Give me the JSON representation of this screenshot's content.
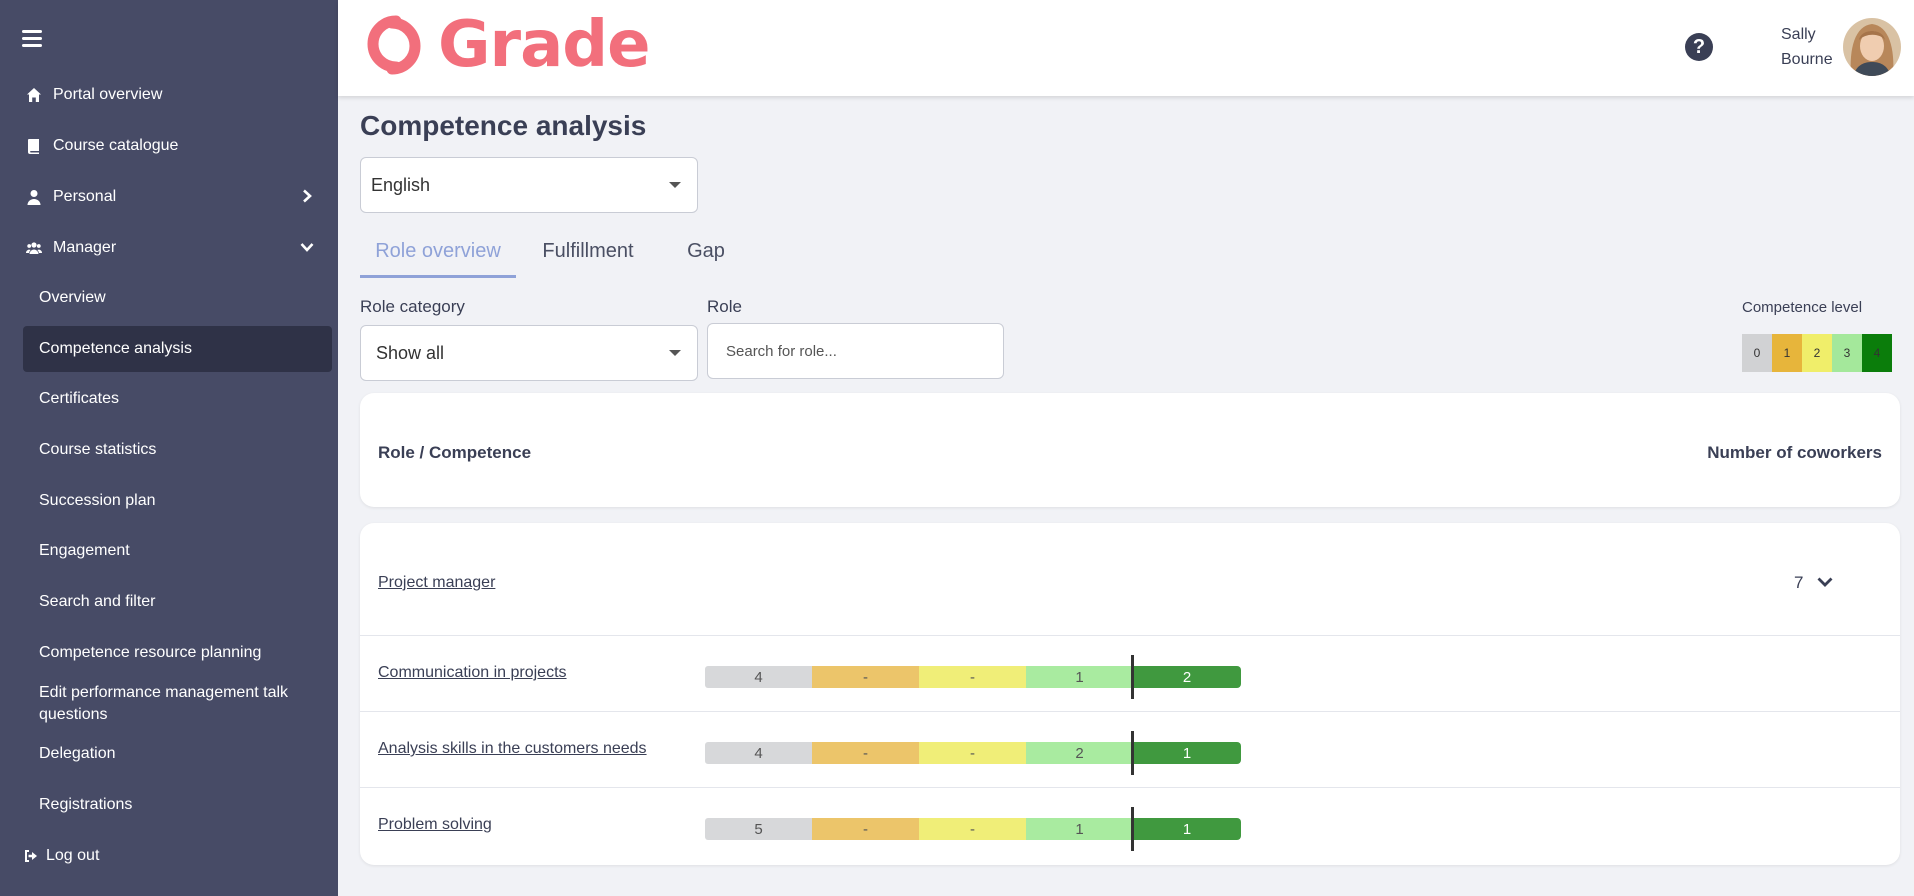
{
  "app": {
    "title": "Grade"
  },
  "sidebar": {
    "items": [
      {
        "label": "Portal overview",
        "icon": "home-icon"
      },
      {
        "label": "Course catalogue",
        "icon": "book-icon"
      },
      {
        "label": "Personal",
        "icon": "user-icon"
      },
      {
        "label": "Manager",
        "icon": "users-icon"
      }
    ],
    "manager_items": [
      {
        "label": "Overview"
      },
      {
        "label": "Competence analysis",
        "active": true
      },
      {
        "label": "Certificates"
      },
      {
        "label": "Course statistics"
      },
      {
        "label": "Succession plan"
      },
      {
        "label": "Engagement"
      },
      {
        "label": "Search and filter"
      },
      {
        "label": "Competence resource planning"
      },
      {
        "label": "Edit performance management talk questions"
      },
      {
        "label": "Delegation"
      },
      {
        "label": "Registrations"
      }
    ],
    "logout": {
      "label": "Log out",
      "icon": "logout-icon"
    }
  },
  "header": {
    "logo_text": "Grade",
    "user": {
      "first": "Sally",
      "last": "Bourne"
    }
  },
  "main": {
    "title": "Competence analysis",
    "language": {
      "value": "English"
    },
    "tabs": [
      {
        "label": "Role overview",
        "active": true
      },
      {
        "label": "Fulfillment"
      },
      {
        "label": "Gap"
      }
    ],
    "filters": {
      "role_category": {
        "label": "Role category",
        "value": "Show all"
      },
      "role": {
        "label": "Role",
        "placeholder": "Search for role..."
      }
    },
    "legend": {
      "title": "Competence level",
      "levels": [
        {
          "label": "0",
          "color": "#d1d2d4"
        },
        {
          "label": "1",
          "color": "#e7b53b"
        },
        {
          "label": "2",
          "color": "#f0ee6a"
        },
        {
          "label": "3",
          "color": "#a4e89b"
        },
        {
          "label": "4",
          "color": "#0b7d0b"
        }
      ]
    },
    "table": {
      "col_left": "Role / Competence",
      "col_right": "Number of coworkers",
      "role": {
        "name": "Project manager",
        "count": "7"
      },
      "competences": [
        {
          "name": "Communication in projects",
          "levels": [
            "4",
            "-",
            "-",
            "1",
            "2"
          ]
        },
        {
          "name": "Analysis skills in the customers needs",
          "levels": [
            "4",
            "-",
            "-",
            "2",
            "1"
          ]
        },
        {
          "name": "Problem solving",
          "levels": [
            "5",
            "-",
            "-",
            "1",
            "1"
          ]
        }
      ]
    }
  }
}
